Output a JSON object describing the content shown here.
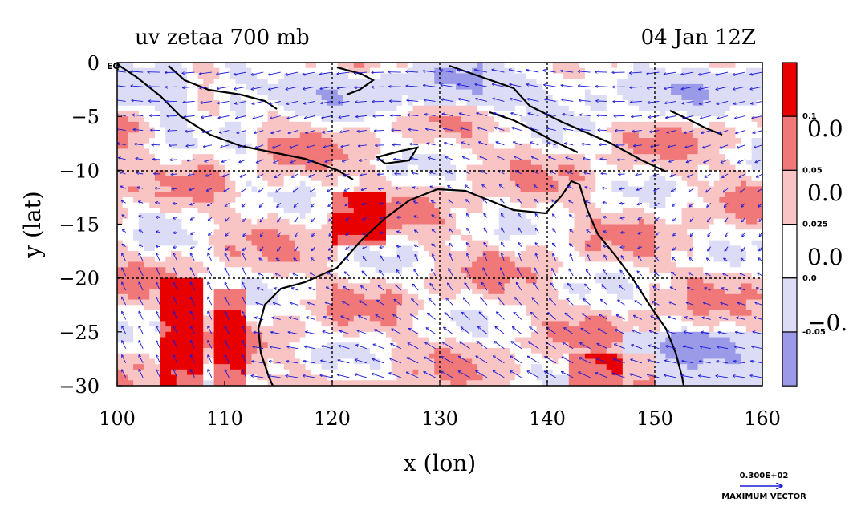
{
  "header": {
    "title_left": "uv zetaa 700 mb",
    "title_right": "04 Jan 12Z"
  },
  "chart_data": {
    "type": "heatmap",
    "title": "uv zetaa 700 mb",
    "time_label": "04 Jan 12Z",
    "xlabel": "x (lon)",
    "ylabel": "y (lat)",
    "xlim": [
      100,
      160
    ],
    "ylim": [
      -30,
      0
    ],
    "x_ticks": [
      "100",
      "110",
      "120",
      "130",
      "140",
      "150",
      "160"
    ],
    "y_ticks": [
      "0",
      "−5",
      "−10",
      "−15",
      "−20",
      "−25",
      "−30"
    ],
    "equator_label": "EQ",
    "grid": true,
    "grid_lines_lon": [
      110,
      120,
      130,
      140,
      150
    ],
    "grid_lines_lat": [
      -10,
      -20
    ],
    "contour_levels": [
      -0.05,
      0.0,
      0.025,
      0.05,
      0.1
    ],
    "colorbar": {
      "levels": [
        "0.1",
        "0.05",
        "0.025",
        "0.0",
        "-0.05"
      ],
      "side_labels": [
        "0.0",
        "0.0",
        "0.0",
        "−0."
      ],
      "colors": [
        "#e80000",
        "#f07878",
        "#f8c4c4",
        "#ffffff",
        "#dcdcf6",
        "#9a9ae8"
      ]
    },
    "vector_legend": {
      "value": "0.300E+02",
      "label": "MAXIMUM VECTOR"
    },
    "colors": {
      "vector": "#1a1ad8",
      "coast": "#000000",
      "contour": "#d00000"
    }
  }
}
